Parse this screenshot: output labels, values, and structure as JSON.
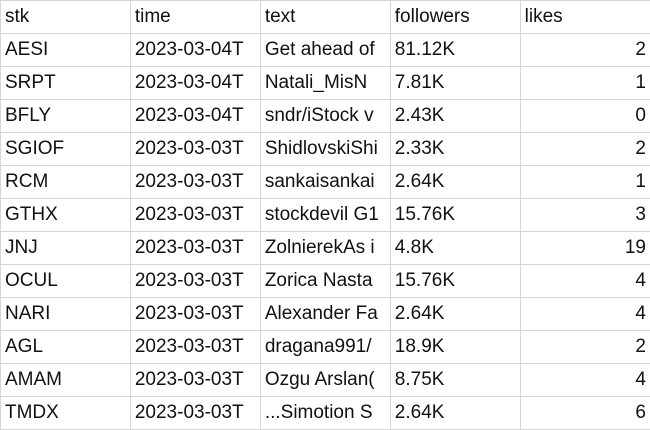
{
  "sheet": {
    "columns": [
      "stk",
      "time",
      "text",
      "followers",
      "likes"
    ],
    "rows": [
      [
        "AESI",
        "2023-03-04T",
        "Get ahead of",
        "81.12K",
        "2"
      ],
      [
        "SRPT",
        "2023-03-04T",
        "Natali_MisN",
        "7.81K",
        "1"
      ],
      [
        "BFLY",
        "2023-03-04T",
        "sndr/iStock v",
        "2.43K",
        "0"
      ],
      [
        "SGIOF",
        "2023-03-03T",
        "ShidlovskiShi",
        "2.33K",
        "2"
      ],
      [
        "RCM",
        "2023-03-03T",
        "sankaisankai",
        "2.64K",
        "1"
      ],
      [
        "GTHX",
        "2023-03-03T",
        "stockdevil G1",
        "15.76K",
        "3"
      ],
      [
        "JNJ",
        "2023-03-03T",
        "ZolnierekAs i",
        "4.8K",
        "19"
      ],
      [
        "OCUL",
        "2023-03-03T",
        "Zorica Nasta",
        "15.76K",
        "4"
      ],
      [
        "NARI",
        "2023-03-03T",
        "Alexander Fa",
        "2.64K",
        "4"
      ],
      [
        "AGL",
        "2023-03-03T",
        "dragana991/",
        "18.9K",
        "2"
      ],
      [
        "AMAM",
        "2023-03-03T",
        "Ozgu Arslan(",
        "8.75K",
        "4"
      ],
      [
        "TMDX",
        "2023-03-03T",
        "...Simotion S",
        "2.64K",
        "6"
      ]
    ]
  }
}
